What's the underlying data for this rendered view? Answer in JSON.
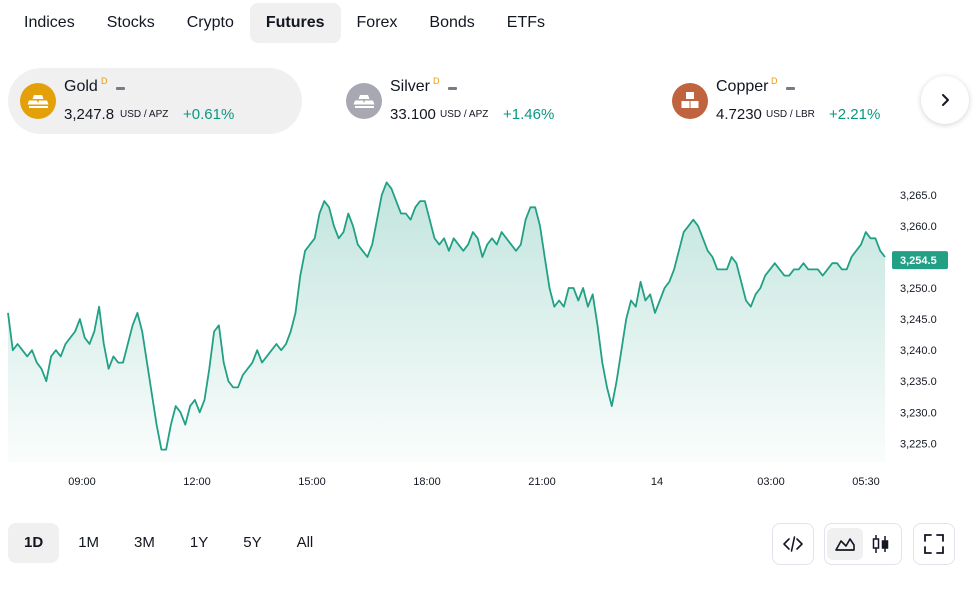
{
  "tabs": [
    {
      "label": "Indices",
      "active": false
    },
    {
      "label": "Stocks",
      "active": false
    },
    {
      "label": "Crypto",
      "active": false
    },
    {
      "label": "Futures",
      "active": true
    },
    {
      "label": "Forex",
      "active": false
    },
    {
      "label": "Bonds",
      "active": false
    },
    {
      "label": "ETFs",
      "active": false
    }
  ],
  "instruments": [
    {
      "name": "Gold",
      "badge": "D",
      "price": "3,247.8",
      "unit": "USD / APZ",
      "change": "+0.61%",
      "icon": "gold-bars-icon",
      "icon_color": "#e3a008",
      "active": true
    },
    {
      "name": "Silver",
      "badge": "D",
      "price": "33.100",
      "unit": "USD / APZ",
      "change": "+1.46%",
      "icon": "silver-bars-icon",
      "icon_color": "#a8a8b3",
      "active": false
    },
    {
      "name": "Copper",
      "badge": "D",
      "price": "4.7230",
      "unit": "USD / LBR",
      "change": "+2.21%",
      "icon": "copper-blocks-icon",
      "icon_color": "#c0633f",
      "active": false
    }
  ],
  "chart_data": {
    "type": "area",
    "line_color": "#22a085",
    "x_ticks": [
      "09:00",
      "12:00",
      "15:00",
      "18:00",
      "21:00",
      "14",
      "03:00",
      "05:30"
    ],
    "y_ticks": [
      "3,265.0",
      "3,260.0",
      "3,255.0",
      "3,250.0",
      "3,245.0",
      "3,240.0",
      "3,235.0",
      "3,230.0",
      "3,225.0"
    ],
    "ylim": [
      3222,
      3269
    ],
    "last_value_label": "3,254.5",
    "series": [
      {
        "values": [
          3246,
          3240,
          3241,
          3240,
          3239,
          3240,
          3238,
          3237,
          3235,
          3239,
          3240,
          3239,
          3241,
          3242,
          3243,
          3245,
          3242,
          3241,
          3243,
          3247,
          3241,
          3237,
          3239,
          3238,
          3238,
          3241,
          3244,
          3246,
          3243,
          3238,
          3233,
          3228,
          3224,
          3224,
          3228,
          3231,
          3230,
          3228,
          3231,
          3232,
          3230,
          3232,
          3237,
          3243,
          3244,
          3238,
          3235,
          3234,
          3234,
          3236,
          3237,
          3238,
          3240,
          3238,
          3239,
          3240,
          3241,
          3240,
          3241,
          3243,
          3246,
          3252,
          3256,
          3257,
          3258,
          3262,
          3264,
          3263,
          3260,
          3258,
          3259,
          3262,
          3260,
          3257,
          3256,
          3255,
          3257,
          3261,
          3265,
          3267,
          3266,
          3264,
          3262,
          3262,
          3261,
          3263,
          3264,
          3264,
          3261,
          3258,
          3257,
          3258,
          3256,
          3258,
          3257,
          3256,
          3257,
          3259,
          3258,
          3255,
          3257,
          3258,
          3257,
          3259,
          3258,
          3257,
          3256,
          3257,
          3261,
          3263,
          3263,
          3260,
          3255,
          3250,
          3247,
          3248,
          3247,
          3250,
          3250,
          3248,
          3250,
          3247,
          3249,
          3244,
          3238,
          3234,
          3231,
          3235,
          3240,
          3245,
          3248,
          3247,
          3251,
          3248,
          3249,
          3246,
          3248,
          3250,
          3251,
          3253,
          3256,
          3259,
          3260,
          3261,
          3260,
          3258,
          3256,
          3255,
          3253,
          3253,
          3253,
          3255,
          3254,
          3251,
          3248,
          3247,
          3249,
          3250,
          3252,
          3253,
          3254,
          3253,
          3252,
          3252,
          3253,
          3253,
          3254,
          3253,
          3253,
          3253,
          3252,
          3253,
          3254,
          3254,
          3253,
          3253,
          3255,
          3256,
          3257,
          3259,
          3258,
          3258,
          3256,
          3255
        ]
      }
    ]
  },
  "ranges": [
    {
      "label": "1D",
      "active": true
    },
    {
      "label": "1M",
      "active": false
    },
    {
      "label": "3M",
      "active": false
    },
    {
      "label": "1Y",
      "active": false
    },
    {
      "label": "5Y",
      "active": false
    },
    {
      "label": "All",
      "active": false
    }
  ],
  "tools": {
    "embed_icon": "code-icon",
    "area_icon": "area-chart-icon",
    "candles_icon": "candlestick-icon",
    "fullscreen_icon": "fullscreen-icon"
  }
}
